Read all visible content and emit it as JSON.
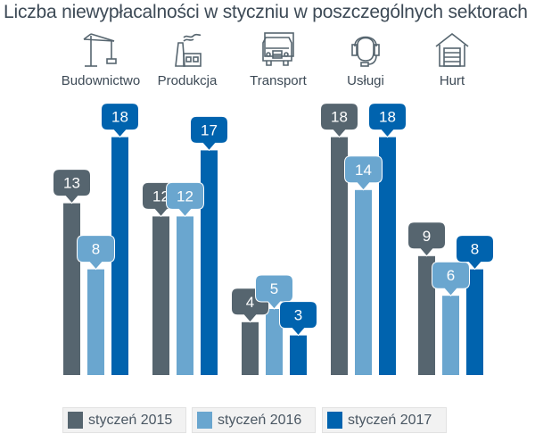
{
  "chart_data": {
    "type": "bar",
    "title": "Liczba niewypłacalności w styczniu w poszczególnych sektorach",
    "categories": [
      "Budownictwo",
      "Produkcja",
      "Transport",
      "Usługi",
      "Hurt"
    ],
    "category_icons": [
      "crane-icon",
      "factory-icon",
      "truck-icon",
      "headset-icon",
      "warehouse-icon"
    ],
    "series": [
      {
        "name": "styczeń 2015",
        "color": "#56656f",
        "values": [
          13,
          12,
          4,
          18,
          9
        ]
      },
      {
        "name": "styczeń 2016",
        "color": "#6aa6cf",
        "values": [
          8,
          12,
          5,
          14,
          6
        ]
      },
      {
        "name": "styczeń 2017",
        "color": "#0063ae",
        "values": [
          18,
          17,
          3,
          18,
          8
        ]
      }
    ],
    "xlabel": "",
    "ylabel": "",
    "ylim": [
      0,
      18
    ],
    "grid": false,
    "legend_position": "bottom"
  }
}
